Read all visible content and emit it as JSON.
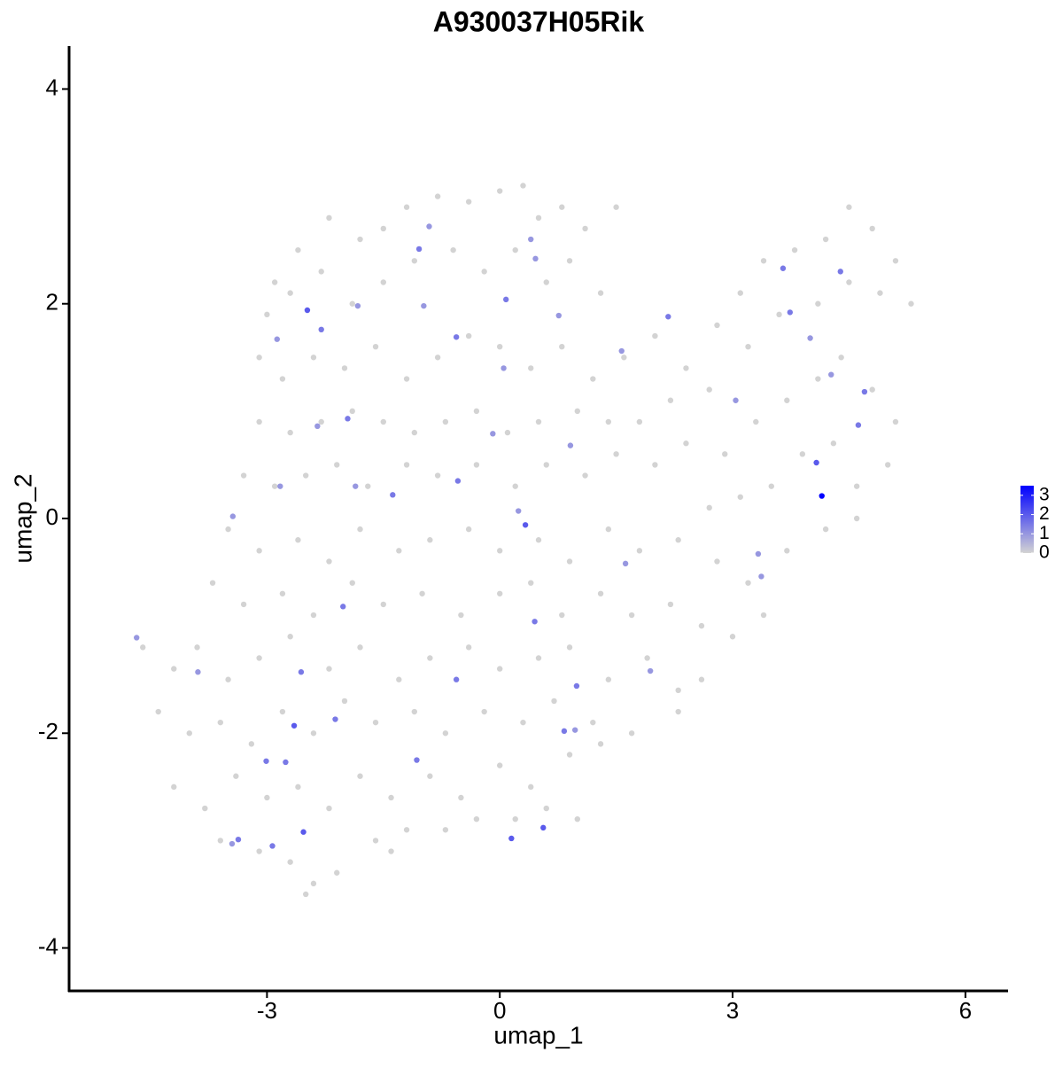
{
  "chart_data": {
    "type": "scatter",
    "title": "A930037H05Rik",
    "x_label": "umap_1",
    "y_label": "umap_2",
    "xlim": [
      -5.55,
      6.55
    ],
    "ylim": [
      -4.4,
      4.4
    ],
    "xticks": [
      -3,
      0,
      3,
      6
    ],
    "yticks": [
      -4,
      -2,
      0,
      2,
      4
    ],
    "x": [
      -2.2,
      -1.8,
      -1.5,
      -1.2,
      -0.8,
      -0.4,
      0,
      0.3,
      0.5,
      0.8,
      1.1,
      1.5,
      -2.6,
      -2.9,
      -3.0,
      -2.7,
      -2.3,
      -1.9,
      -1.5,
      -1.1,
      -0.6,
      -0.2,
      0.2,
      0.6,
      0.9,
      1.3,
      -3.1,
      -2.8,
      -2.4,
      -2.0,
      -1.6,
      -1.2,
      -0.8,
      -0.4,
      0,
      0.4,
      0.8,
      1.2,
      1.6,
      2.0,
      2.4,
      2.8,
      3.1,
      3.4,
      3.8,
      4.2,
      4.5,
      4.8,
      5.1,
      5.3,
      4.9,
      4.5,
      4.1,
      3.6,
      3.2,
      2.7,
      2.2,
      1.8,
      1.4,
      1.0,
      0.5,
      0.1,
      -0.3,
      -0.7,
      -1.1,
      -1.5,
      -1.9,
      -2.3,
      -2.7,
      -3.1,
      -3.3,
      -2.9,
      -2.5,
      -2.1,
      -1.7,
      -1.2,
      -0.8,
      -0.3,
      0.2,
      0.6,
      1.1,
      1.5,
      2.0,
      2.4,
      2.9,
      3.3,
      3.7,
      4.1,
      4.4,
      4.8,
      5.1,
      5.0,
      4.6,
      4.3,
      3.9,
      3.5,
      3.1,
      2.7,
      -3.5,
      -3.1,
      -2.6,
      -2.2,
      -1.8,
      -1.3,
      -0.9,
      -0.4,
      0,
      0.5,
      0.9,
      1.4,
      1.8,
      2.3,
      2.8,
      3.2,
      3.7,
      4.2,
      4.6,
      -3.7,
      -3.3,
      -2.8,
      -2.4,
      -1.9,
      -1.5,
      -1.0,
      -0.5,
      0,
      0.4,
      0.8,
      1.3,
      1.7,
      2.2,
      2.6,
      3.0,
      3.4,
      -4.6,
      -4.2,
      -3.9,
      -3.5,
      -3.1,
      -2.7,
      -2.2,
      -1.8,
      -1.3,
      -0.9,
      -0.4,
      0,
      0.5,
      0.9,
      1.4,
      1.9,
      2.3,
      2.6,
      -4.4,
      -4.0,
      -3.6,
      -3.2,
      -2.8,
      -2.4,
      -2.0,
      -1.6,
      -1.1,
      -0.7,
      -0.2,
      0.3,
      0.7,
      1.2,
      1.7,
      2.3,
      -4.2,
      -3.8,
      -3.4,
      -3.0,
      -2.6,
      -2.2,
      -1.8,
      -1.4,
      -0.9,
      -0.5,
      0,
      0.4,
      0.9,
      1.3,
      -3.6,
      -3.1,
      -2.7,
      -2.4,
      -2.1,
      -1.6,
      -1.2,
      -0.7,
      -0.3,
      0.2,
      0.6,
      1.0,
      -2.5,
      -1.4,
      -4.68,
      -2.48,
      -2.3,
      -1.04,
      -0.91,
      0.08,
      -0.98,
      -0.56,
      -1.96,
      -1.38,
      -0.54,
      0.33,
      0.24,
      2.17,
      3.65,
      4.39,
      3.74,
      3.04,
      4.08,
      4.15,
      4.7,
      4.62,
      3.33,
      3.37,
      0.45,
      -2.02,
      -2.56,
      -2.65,
      -2.12,
      -3.01,
      -2.76,
      -2.53,
      -2.93,
      -3.37,
      -3.45,
      0.15,
      0.56,
      -1.07,
      0.83,
      0.97,
      -0.56,
      0.99,
      1.94,
      1.62,
      -3.89,
      0.4,
      0.46,
      4.0,
      4.27,
      -2.87,
      -3.44,
      -2.83,
      -1.86,
      0.91,
      -0.09,
      0.05,
      -1.83,
      -2.35,
      0.76,
      1.57
    ],
    "y": [
      2.8,
      2.6,
      2.7,
      2.9,
      3.0,
      2.95,
      3.05,
      3.1,
      2.8,
      2.9,
      2.7,
      2.9,
      2.5,
      2.2,
      1.9,
      2.1,
      2.3,
      2.0,
      2.2,
      2.4,
      2.5,
      2.3,
      2.5,
      2.2,
      2.4,
      2.1,
      1.5,
      1.3,
      1.5,
      1.4,
      1.6,
      1.3,
      1.5,
      1.7,
      1.6,
      1.4,
      1.6,
      1.3,
      1.5,
      1.7,
      1.4,
      1.8,
      2.1,
      2.4,
      2.5,
      2.6,
      2.9,
      2.7,
      2.4,
      2.0,
      2.1,
      2.2,
      2.0,
      1.9,
      1.6,
      1.2,
      1.1,
      0.9,
      0.9,
      1.0,
      0.9,
      0.8,
      1.0,
      0.9,
      0.8,
      0.9,
      1.0,
      0.9,
      0.8,
      0.9,
      0.4,
      0.3,
      0.4,
      0.5,
      0.3,
      0.5,
      0.4,
      0.5,
      0.3,
      0.5,
      0.4,
      0.6,
      0.5,
      0.7,
      0.6,
      0.9,
      1.1,
      1.3,
      1.5,
      1.2,
      0.9,
      0.5,
      0.3,
      0.7,
      0.6,
      0.3,
      0.2,
      0.1,
      -0.1,
      -0.3,
      -0.2,
      -0.4,
      -0.1,
      -0.3,
      -0.2,
      -0.1,
      -0.3,
      -0.2,
      -0.4,
      -0.1,
      -0.3,
      -0.2,
      -0.4,
      -0.6,
      -0.3,
      -0.1,
      0.0,
      -0.6,
      -0.8,
      -0.7,
      -0.9,
      -0.6,
      -0.8,
      -0.7,
      -0.9,
      -0.7,
      -0.6,
      -0.9,
      -0.7,
      -0.9,
      -0.8,
      -1.0,
      -1.1,
      -0.9,
      -1.2,
      -1.4,
      -1.2,
      -1.5,
      -1.3,
      -1.1,
      -1.4,
      -1.2,
      -1.5,
      -1.3,
      -1.2,
      -1.4,
      -1.3,
      -1.2,
      -1.5,
      -1.3,
      -1.6,
      -1.5,
      -1.8,
      -2.0,
      -1.9,
      -2.1,
      -1.8,
      -2.0,
      -1.7,
      -1.9,
      -1.8,
      -2.0,
      -1.8,
      -1.9,
      -1.7,
      -1.9,
      -2.0,
      -1.8,
      -2.5,
      -2.7,
      -2.4,
      -2.6,
      -2.5,
      -2.7,
      -2.4,
      -2.6,
      -2.4,
      -2.6,
      -2.3,
      -2.5,
      -2.2,
      -2.1,
      -3.0,
      -3.1,
      -3.2,
      -3.4,
      -3.3,
      -3.0,
      -2.9,
      -2.9,
      -2.8,
      -2.8,
      -2.7,
      -2.8,
      -3.5,
      -3.1,
      -1.11,
      1.94,
      1.76,
      2.51,
      2.72,
      2.04,
      1.98,
      1.69,
      0.93,
      0.22,
      0.35,
      -0.06,
      0.07,
      1.88,
      2.33,
      2.3,
      1.92,
      1.1,
      0.52,
      0.21,
      1.18,
      0.87,
      -0.33,
      -0.54,
      -0.96,
      -0.82,
      -1.43,
      -1.93,
      -1.87,
      -2.26,
      -2.27,
      -2.92,
      -3.05,
      -2.99,
      -3.03,
      -2.98,
      -2.88,
      -2.25,
      -1.98,
      -1.97,
      -1.5,
      -1.56,
      -1.42,
      -0.42,
      -1.43,
      2.6,
      2.42,
      1.68,
      1.34,
      1.67,
      0.02,
      0.3,
      0.3,
      0.68,
      0.79,
      1.4,
      1.98,
      0.86,
      1.89,
      1.56
    ],
    "expression": [
      0,
      0,
      0,
      0,
      0,
      0,
      0,
      0,
      0,
      0,
      0,
      0,
      0,
      0,
      0,
      0,
      0,
      0,
      0,
      0,
      0,
      0,
      0,
      0,
      0,
      0,
      0,
      0,
      0,
      0,
      0,
      0,
      0,
      0,
      0,
      0,
      0,
      0,
      0,
      0,
      0,
      0,
      0,
      0,
      0,
      0,
      0,
      0,
      0,
      0,
      0,
      0,
      0,
      0,
      0,
      0,
      0,
      0,
      0,
      0,
      0,
      0,
      0,
      0,
      0,
      0,
      0,
      0,
      0,
      0,
      0,
      0,
      0,
      0,
      0,
      0,
      0,
      0,
      0,
      0,
      0,
      0,
      0,
      0,
      0,
      0,
      0,
      0,
      0,
      0,
      0,
      0,
      0,
      0,
      0,
      0,
      0,
      0,
      0,
      0,
      0,
      0,
      0,
      0,
      0,
      0,
      0,
      0,
      0,
      0,
      0,
      0,
      0,
      0,
      0,
      0,
      0,
      0,
      0,
      0,
      0,
      0,
      0,
      0,
      0,
      0,
      0,
      0,
      0,
      0,
      0,
      0,
      0,
      0,
      0,
      0,
      0,
      0,
      0,
      0,
      0,
      0,
      0,
      0,
      0,
      0,
      0,
      0,
      0,
      0,
      0,
      0,
      0,
      0,
      0,
      0,
      0,
      0,
      0,
      0,
      0,
      0,
      0,
      0,
      0,
      0,
      0,
      0,
      0,
      0,
      0,
      0,
      0,
      0,
      0,
      0,
      0,
      0,
      0,
      0,
      0,
      0,
      0,
      0,
      0,
      0,
      0,
      0,
      0,
      0,
      0,
      0,
      0,
      0,
      0,
      0,
      1,
      2,
      1.5,
      1.5,
      1,
      1.5,
      1,
      1.5,
      1.5,
      1.5,
      1.5,
      2,
      1,
      1.5,
      1.5,
      1.5,
      1.5,
      1,
      2,
      3.5,
      1.5,
      1.5,
      1,
      1,
      1.5,
      1.5,
      1.5,
      2,
      1.5,
      1.5,
      1.5,
      2,
      1.5,
      1.5,
      1,
      2,
      2,
      1.5,
      1.5,
      1,
      1.5,
      1.5,
      1,
      1,
      1,
      1,
      1,
      1,
      1,
      1,
      1,
      1,
      1,
      1,
      1,
      1,
      1,
      1,
      1,
      1
    ],
    "colorbar": {
      "lim": [
        0,
        3.5
      ],
      "ticks": [
        0,
        1,
        2,
        3
      ],
      "low_color": "#d3d3d3",
      "high_color": "#0000ff"
    }
  }
}
